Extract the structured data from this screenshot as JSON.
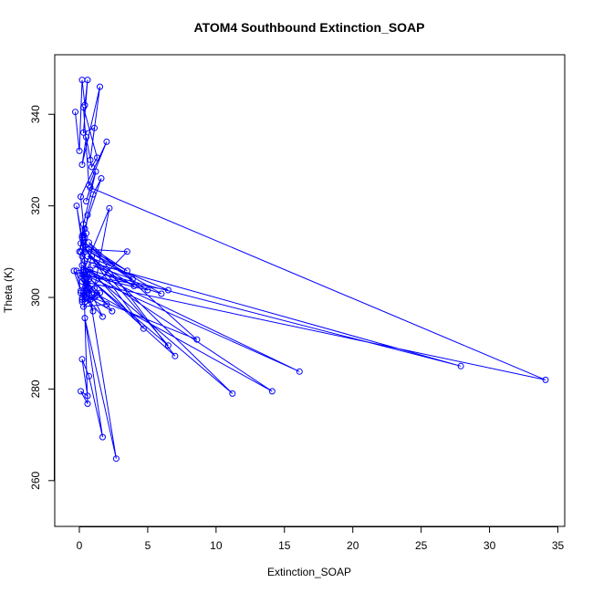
{
  "chart_data": {
    "type": "line",
    "title": "ATOM4 Southbound Extinction_SOAP",
    "xlabel": "Extinction_SOAP",
    "ylabel": "Theta (K)",
    "xlim": [
      -1.8,
      35.5
    ],
    "ylim": [
      250,
      353
    ],
    "xticks": [
      0,
      5,
      10,
      15,
      20,
      25,
      30,
      35
    ],
    "yticks": [
      260,
      280,
      300,
      320,
      340
    ],
    "grid": false,
    "series_color": "#0000ff",
    "series": [
      {
        "marker": "open-circle",
        "x": [
          -0.3,
          0.0,
          0.2,
          0.4,
          0.6,
          0.3,
          1.1,
          0.8,
          1.5,
          0.2,
          0.5,
          0.9,
          1.3,
          0.3,
          0.7,
          2.0,
          0.1,
          0.4,
          0.6,
          1.0,
          1.6,
          0.2,
          0.3,
          1.2,
          0.5,
          0.8,
          34.1,
          0.2,
          0.1,
          0.4,
          27.9,
          0.6,
          16.1,
          0.3,
          0.5,
          14.1,
          0.2,
          11.2,
          0.9,
          0.1,
          8.6,
          0.7,
          7.0,
          0.4,
          6.5,
          0.3,
          4.7,
          0.8,
          6.0,
          0.5,
          5.0,
          0.2,
          6.5,
          0.6,
          4.0,
          1.0,
          3.9,
          0.3,
          3.5,
          0.7,
          3.5,
          0.4,
          2.4,
          1.1,
          2.2,
          0.2,
          1.7,
          0.5,
          1.0,
          0.3,
          0.6,
          0.1,
          0.6,
          0.2,
          0.7,
          1.7,
          0.4,
          2.7,
          0.8,
          -0.2,
          0.2,
          0.0,
          0.4,
          0.1,
          0.3,
          0.2,
          0.5,
          0.3,
          -0.2,
          0.1,
          -0.4,
          0.6,
          0.2,
          0.8,
          0.3,
          0.4,
          1.3,
          0.2,
          0.5,
          0.9,
          0.3,
          0.7,
          0.4,
          1.5,
          0.6,
          2.0,
          0.3,
          1.1,
          0.5,
          0.2
        ],
        "y": [
          340.5,
          332.0,
          347.5,
          342.0,
          347.5,
          336.0,
          337.0,
          330.0,
          346.0,
          329.0,
          335.0,
          328.5,
          330.5,
          341.5,
          324.5,
          334.0,
          322.0,
          313.0,
          318.0,
          322.5,
          326.0,
          313.5,
          316.0,
          327.5,
          321.0,
          324.0,
          282.0,
          303.5,
          310.0,
          308.0,
          285.0,
          306.0,
          283.8,
          305.0,
          302.0,
          279.5,
          307.0,
          279.0,
          309.0,
          301.0,
          290.8,
          312.0,
          287.2,
          305.0,
          289.5,
          311.0,
          293.2,
          306.0,
          300.8,
          310.5,
          301.6,
          305.0,
          301.6,
          309.0,
          302.5,
          307.0,
          304.0,
          312.0,
          305.8,
          310.5,
          310.0,
          300.5,
          297.0,
          302.0,
          319.5,
          305.0,
          295.8,
          300.0,
          297.0,
          305.5,
          276.8,
          279.5,
          278.5,
          286.5,
          282.8,
          269.5,
          295.5,
          264.8,
          299.5,
          320.0,
          313.0,
          310.0,
          315.0,
          311.8,
          312.5,
          309.0,
          314.0,
          306.0,
          305.8,
          301.5,
          305.8,
          302.0,
          299.5,
          305.5,
          301.0,
          304.0,
          300.5,
          299.0,
          303.0,
          301.0,
          300.5,
          304.0,
          299.0,
          301.0,
          303.0,
          298.5,
          298.0,
          300.0,
          302.0,
          300.0
        ]
      }
    ]
  }
}
